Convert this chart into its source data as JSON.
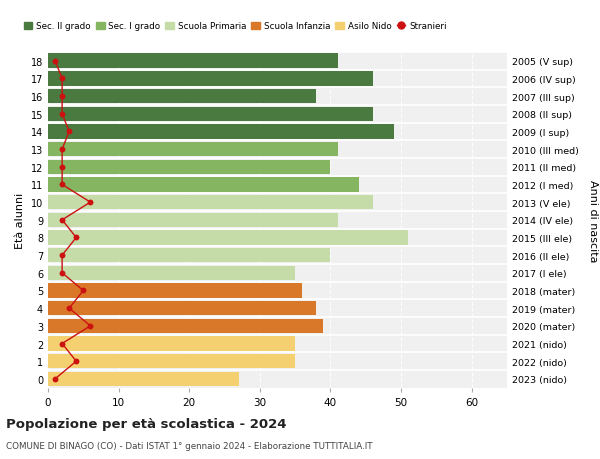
{
  "ages": [
    18,
    17,
    16,
    15,
    14,
    13,
    12,
    11,
    10,
    9,
    8,
    7,
    6,
    5,
    4,
    3,
    2,
    1,
    0
  ],
  "years": [
    "2005 (V sup)",
    "2006 (IV sup)",
    "2007 (III sup)",
    "2008 (II sup)",
    "2009 (I sup)",
    "2010 (III med)",
    "2011 (II med)",
    "2012 (I med)",
    "2013 (V ele)",
    "2014 (IV ele)",
    "2015 (III ele)",
    "2016 (II ele)",
    "2017 (I ele)",
    "2018 (mater)",
    "2019 (mater)",
    "2020 (mater)",
    "2021 (nido)",
    "2022 (nido)",
    "2023 (nido)"
  ],
  "values": [
    41,
    46,
    38,
    46,
    49,
    41,
    40,
    44,
    46,
    41,
    51,
    40,
    35,
    36,
    38,
    39,
    35,
    35,
    27
  ],
  "stranieri": [
    1,
    2,
    2,
    2,
    3,
    2,
    2,
    2,
    6,
    2,
    4,
    2,
    2,
    5,
    3,
    6,
    2,
    4,
    1
  ],
  "bar_colors": [
    "#4a7a40",
    "#4a7a40",
    "#4a7a40",
    "#4a7a40",
    "#4a7a40",
    "#85b560",
    "#85b560",
    "#85b560",
    "#c5dca8",
    "#c5dca8",
    "#c5dca8",
    "#c5dca8",
    "#c5dca8",
    "#d97828",
    "#d97828",
    "#d97828",
    "#f5d070",
    "#f5d070",
    "#f5d070"
  ],
  "legend_colors": [
    "#4a7a40",
    "#85b560",
    "#c5dca8",
    "#d97828",
    "#f5d070",
    "#cc1111"
  ],
  "legend_labels": [
    "Sec. II grado",
    "Sec. I grado",
    "Scuola Primaria",
    "Scuola Infanzia",
    "Asilo Nido",
    "Stranieri"
  ],
  "ylabel": "Età alunni",
  "ylabel_right": "Anni di nascita",
  "title": "Popolazione per età scolastica - 2024",
  "subtitle": "COMUNE DI BINAGO (CO) - Dati ISTAT 1° gennaio 2024 - Elaborazione TUTTITALIA.IT",
  "xlim": [
    0,
    65
  ],
  "xticks": [
    0,
    10,
    20,
    30,
    40,
    50,
    60
  ],
  "stranieri_color": "#cc1111",
  "bg_color": "#ffffff",
  "plot_bg_color": "#f0f0f0"
}
